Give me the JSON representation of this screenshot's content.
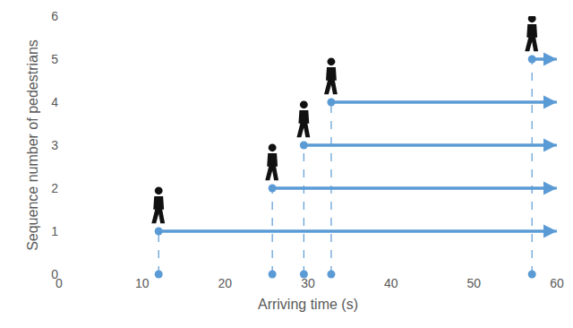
{
  "chart_data": {
    "type": "scatter",
    "x_label": "Arriving time (s)",
    "y_label": "Sequence number of pedestrians",
    "x": [
      12,
      25.7,
      29.5,
      32.8,
      57
    ],
    "values": [
      1,
      2,
      3,
      4,
      5
    ],
    "color": "#5b9bd5",
    "xlim": [
      0,
      60
    ],
    "xticks": [
      0,
      10,
      20,
      30,
      40,
      50,
      60
    ],
    "ylim": [
      0,
      6
    ],
    "yticks": [
      0,
      1,
      2,
      3,
      4,
      5,
      6
    ],
    "grid": false
  }
}
